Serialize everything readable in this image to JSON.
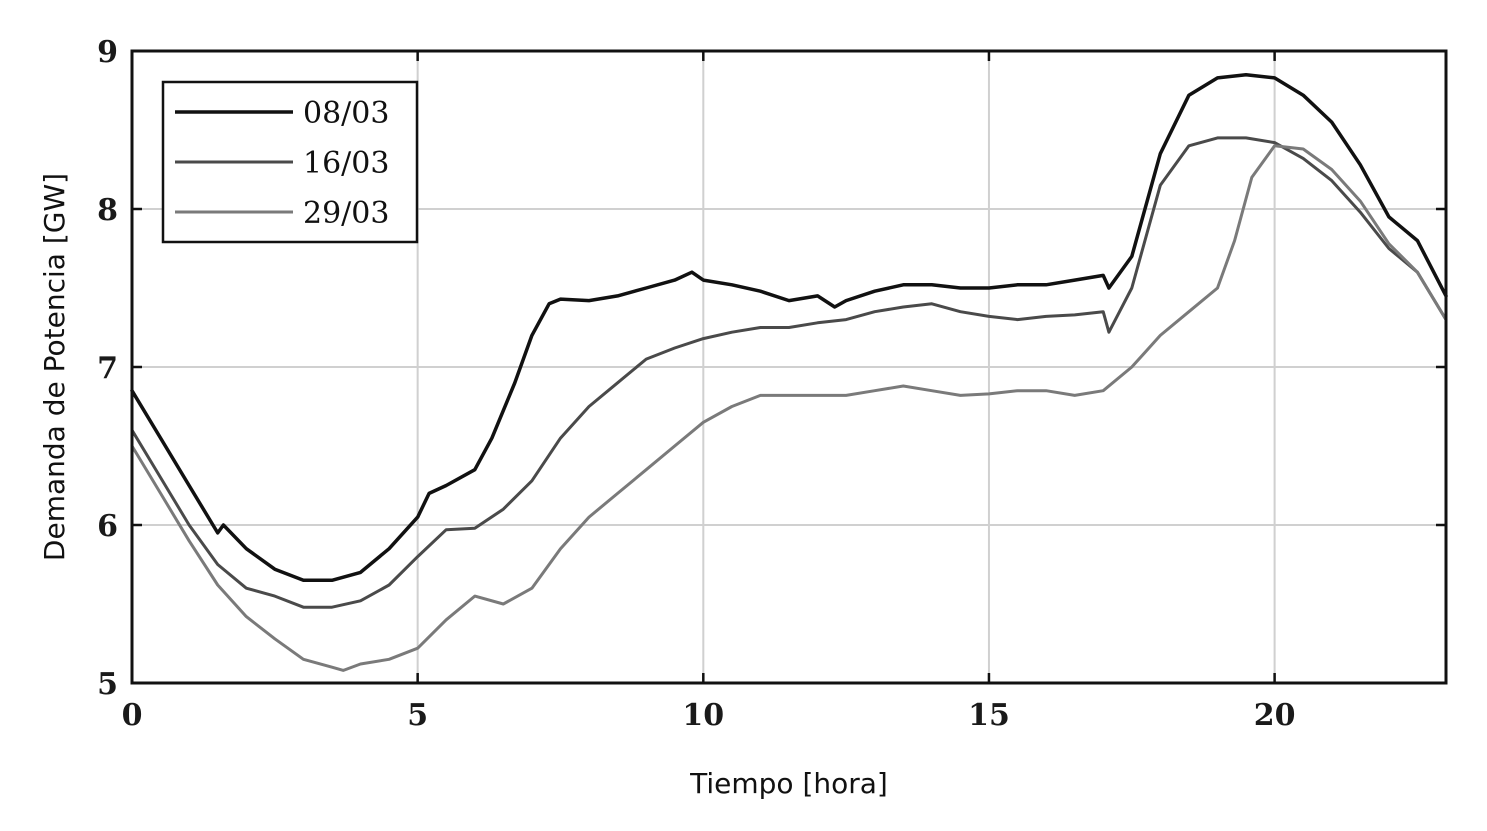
{
  "chart_data": {
    "type": "line",
    "title": "",
    "xlabel": "Tiempo [hora]",
    "ylabel": "Demanda de Potencia [GW]",
    "xlim": [
      0,
      23
    ],
    "ylim": [
      5,
      9
    ],
    "xticks": [
      0,
      5,
      10,
      15,
      20
    ],
    "yticks": [
      5,
      6,
      7,
      8,
      9
    ],
    "grid": true,
    "legend_position": "top-left",
    "series": [
      {
        "name": "08/03",
        "color": "#111111",
        "x": [
          0,
          0.5,
          1.0,
          1.5,
          1.6,
          2.0,
          2.5,
          3.0,
          3.5,
          4.0,
          4.5,
          5.0,
          5.2,
          5.5,
          6.0,
          6.3,
          6.7,
          7.0,
          7.3,
          7.5,
          8.0,
          8.5,
          9.0,
          9.5,
          9.8,
          10.0,
          10.5,
          11.0,
          11.5,
          12.0,
          12.3,
          12.5,
          13.0,
          13.5,
          14.0,
          14.5,
          15.0,
          15.5,
          16.0,
          16.5,
          17.0,
          17.1,
          17.5,
          18.0,
          18.5,
          19.0,
          19.5,
          20.0,
          20.5,
          21.0,
          21.5,
          22.0,
          22.5,
          23.0
        ],
        "y": [
          6.85,
          6.55,
          6.25,
          5.95,
          6.0,
          5.85,
          5.72,
          5.65,
          5.65,
          5.7,
          5.85,
          6.05,
          6.2,
          6.25,
          6.35,
          6.55,
          6.9,
          7.2,
          7.4,
          7.43,
          7.42,
          7.45,
          7.5,
          7.55,
          7.6,
          7.55,
          7.52,
          7.48,
          7.42,
          7.45,
          7.38,
          7.42,
          7.48,
          7.52,
          7.52,
          7.5,
          7.5,
          7.52,
          7.52,
          7.55,
          7.58,
          7.5,
          7.7,
          8.35,
          8.72,
          8.83,
          8.85,
          8.83,
          8.72,
          8.55,
          8.28,
          7.95,
          7.8,
          7.45
        ]
      },
      {
        "name": "16/03",
        "color": "#4a4a4a",
        "x": [
          0,
          0.5,
          1.0,
          1.5,
          2.0,
          2.5,
          3.0,
          3.5,
          4.0,
          4.5,
          5.0,
          5.5,
          6.0,
          6.5,
          7.0,
          7.5,
          8.0,
          8.5,
          9.0,
          9.5,
          10.0,
          10.5,
          11.0,
          11.5,
          12.0,
          12.5,
          13.0,
          13.5,
          14.0,
          14.5,
          15.0,
          15.5,
          16.0,
          16.5,
          17.0,
          17.1,
          17.5,
          18.0,
          18.5,
          19.0,
          19.5,
          20.0,
          20.5,
          21.0,
          21.5,
          22.0,
          22.5,
          23.0
        ],
        "y": [
          6.6,
          6.3,
          6.0,
          5.75,
          5.6,
          5.55,
          5.48,
          5.48,
          5.52,
          5.62,
          5.8,
          5.97,
          5.98,
          6.1,
          6.28,
          6.55,
          6.75,
          6.9,
          7.05,
          7.12,
          7.18,
          7.22,
          7.25,
          7.25,
          7.28,
          7.3,
          7.35,
          7.38,
          7.4,
          7.35,
          7.32,
          7.3,
          7.32,
          7.33,
          7.35,
          7.22,
          7.5,
          8.15,
          8.4,
          8.45,
          8.45,
          8.42,
          8.32,
          8.18,
          7.98,
          7.75,
          7.6,
          7.3
        ]
      },
      {
        "name": "29/03",
        "color": "#7a7a7a",
        "x": [
          0,
          0.5,
          1.0,
          1.5,
          2.0,
          2.5,
          3.0,
          3.5,
          3.7,
          4.0,
          4.5,
          5.0,
          5.5,
          6.0,
          6.5,
          7.0,
          7.5,
          8.0,
          8.5,
          9.0,
          9.5,
          10.0,
          10.5,
          11.0,
          11.5,
          12.0,
          12.5,
          13.0,
          13.5,
          14.0,
          14.5,
          15.0,
          15.5,
          16.0,
          16.5,
          17.0,
          17.5,
          18.0,
          18.5,
          19.0,
          19.3,
          19.6,
          20.0,
          20.5,
          21.0,
          21.5,
          22.0,
          22.5,
          23.0
        ],
        "y": [
          6.5,
          6.2,
          5.9,
          5.62,
          5.42,
          5.28,
          5.15,
          5.1,
          5.08,
          5.12,
          5.15,
          5.22,
          5.4,
          5.55,
          5.5,
          5.6,
          5.85,
          6.05,
          6.2,
          6.35,
          6.5,
          6.65,
          6.75,
          6.82,
          6.82,
          6.82,
          6.82,
          6.85,
          6.88,
          6.85,
          6.82,
          6.83,
          6.85,
          6.85,
          6.82,
          6.85,
          7.0,
          7.2,
          7.35,
          7.5,
          7.8,
          8.2,
          8.4,
          8.38,
          8.25,
          8.05,
          7.78,
          7.6,
          7.3
        ]
      }
    ]
  }
}
